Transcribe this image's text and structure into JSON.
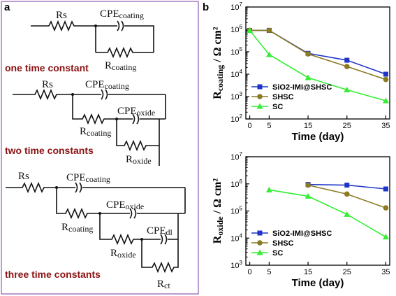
{
  "panel_labels": {
    "a": "a",
    "b": "b"
  },
  "circuits": {
    "one": {
      "caption": "one time constant",
      "rs": "Rs",
      "cpe_coating_main": "CPE",
      "cpe_coating_sub": "coating",
      "r_coating_main": "R",
      "r_coating_sub": "coating"
    },
    "two": {
      "caption": "two time constants",
      "rs": "Rs",
      "cpe_coating_main": "CPE",
      "cpe_coating_sub": "coating",
      "r_coating_main": "R",
      "r_coating_sub": "coating",
      "cpe_oxide_main": "CPE",
      "cpe_oxide_sub": "oxide",
      "r_oxide_main": "R",
      "r_oxide_sub": "oxide"
    },
    "three": {
      "caption": "three time constants",
      "rs": "Rs",
      "cpe_coating_main": "CPE",
      "cpe_coating_sub": "coating",
      "r_coating_main": "R",
      "r_coating_sub": "coating",
      "cpe_oxide_main": "CPE",
      "cpe_oxide_sub": "oxide",
      "r_oxide_main": "R",
      "r_oxide_sub": "oxide",
      "cpe_dl_main": "CPE",
      "cpe_dl_sub": "dl",
      "r_ct_main": "R",
      "r_ct_sub": "ct"
    }
  },
  "colors": {
    "SiO2-IMI@SHSC": "#1f35c8",
    "SHSC": "#8a7a22",
    "SC": "#33ee33",
    "caption": "#8b1212",
    "frame": "#a070b8"
  },
  "chart_data": [
    {
      "type": "line",
      "ylabel_main": "R",
      "ylabel_sub": "coating",
      "ylabel_tail": " / Ω cm²",
      "xlabel": "Time (day)",
      "y_scale": "log",
      "ylim": [
        100,
        10000000
      ],
      "xlim": [
        -1,
        36
      ],
      "xticks": [
        0,
        5,
        15,
        25,
        35
      ],
      "yticks": [
        {
          "value": 100,
          "base": "10",
          "exp": "2"
        },
        {
          "value": 1000,
          "base": "10",
          "exp": "3"
        },
        {
          "value": 10000,
          "base": "10",
          "exp": "4"
        },
        {
          "value": 100000,
          "base": "10",
          "exp": "5"
        },
        {
          "value": 1000000,
          "base": "10",
          "exp": "6"
        },
        {
          "value": 10000000,
          "base": "10",
          "exp": "7"
        }
      ],
      "legend_position": "bottom-left",
      "series": [
        {
          "name": "SiO2-IMI@SHSC",
          "marker": "square",
          "x": [
            0,
            5,
            15,
            25,
            35
          ],
          "y": [
            900000,
            900000,
            85000,
            42000,
            10000
          ]
        },
        {
          "name": "SHSC",
          "marker": "circle",
          "x": [
            0,
            5,
            15,
            25,
            35
          ],
          "y": [
            900000,
            900000,
            80000,
            22000,
            5800
          ]
        },
        {
          "name": "SC",
          "marker": "triangle",
          "x": [
            0,
            5,
            15,
            25,
            35
          ],
          "y": [
            900000,
            75000,
            7000,
            2000,
            650
          ]
        }
      ]
    },
    {
      "type": "line",
      "ylabel_main": "R",
      "ylabel_sub": "oxide",
      "ylabel_tail": " / Ω cm²",
      "xlabel": "Time (day)",
      "y_scale": "log",
      "ylim": [
        1000,
        10000000
      ],
      "xlim": [
        -1,
        36
      ],
      "xticks": [
        0,
        5,
        15,
        25,
        35
      ],
      "yticks": [
        {
          "value": 1000,
          "base": "10",
          "exp": "3"
        },
        {
          "value": 10000,
          "base": "10",
          "exp": "4"
        },
        {
          "value": 100000,
          "base": "10",
          "exp": "5"
        },
        {
          "value": 1000000,
          "base": "10",
          "exp": "6"
        },
        {
          "value": 10000000,
          "base": "10",
          "exp": "7"
        }
      ],
      "legend_position": "bottom-left",
      "series": [
        {
          "name": "SiO2-IMI@SHSC",
          "marker": "square",
          "x": [
            15,
            25,
            35
          ],
          "y": [
            950000,
            900000,
            650000
          ]
        },
        {
          "name": "SHSC",
          "marker": "circle",
          "x": [
            15,
            25,
            35
          ],
          "y": [
            900000,
            420000,
            130000
          ]
        },
        {
          "name": "SC",
          "marker": "triangle",
          "x": [
            5,
            15,
            25,
            35
          ],
          "y": [
            600000,
            350000,
            75000,
            11000
          ]
        }
      ]
    }
  ]
}
